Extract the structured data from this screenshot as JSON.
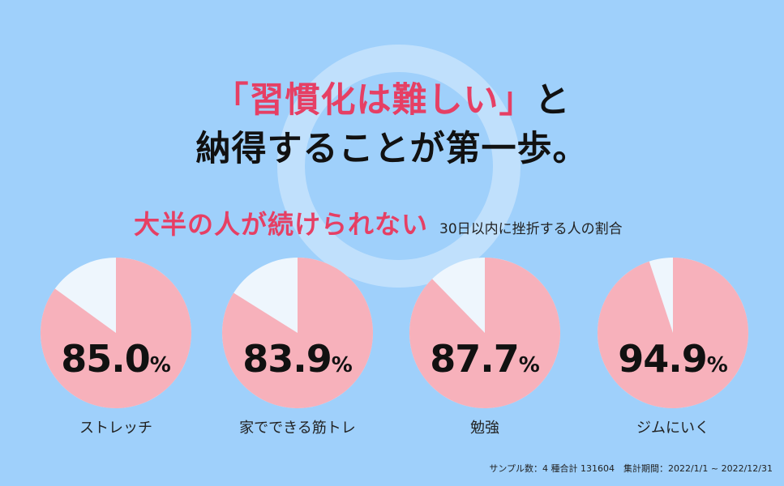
{
  "colors": {
    "background": "#9fd0fb",
    "accent": "#e63f64",
    "pie_main": "#f7b1bb",
    "pie_rest": "#eef6fd"
  },
  "headline": {
    "line1_accent": "「習慣化は難しい」",
    "line1_rest": "と",
    "line2": "納得することが第一歩。"
  },
  "subhead": {
    "lead": "大半の人が続けられない",
    "note": "30日以内に挫折する人の割合"
  },
  "percent_sign": "%",
  "footnote": "サンプル数：4 種合計 131604　集計期間：2022/1/1 ~ 2022/12/31",
  "chart_data": {
    "type": "pie",
    "title": "30日以内に挫折する人の割合",
    "unit": "%",
    "categories": [
      "ストレッチ",
      "家でできる筋トレ",
      "勉強",
      "ジムにいく"
    ],
    "values": [
      85.0,
      83.9,
      87.7,
      94.9
    ],
    "value_labels": [
      "85.0",
      "83.9",
      "87.7",
      "94.9"
    ]
  }
}
